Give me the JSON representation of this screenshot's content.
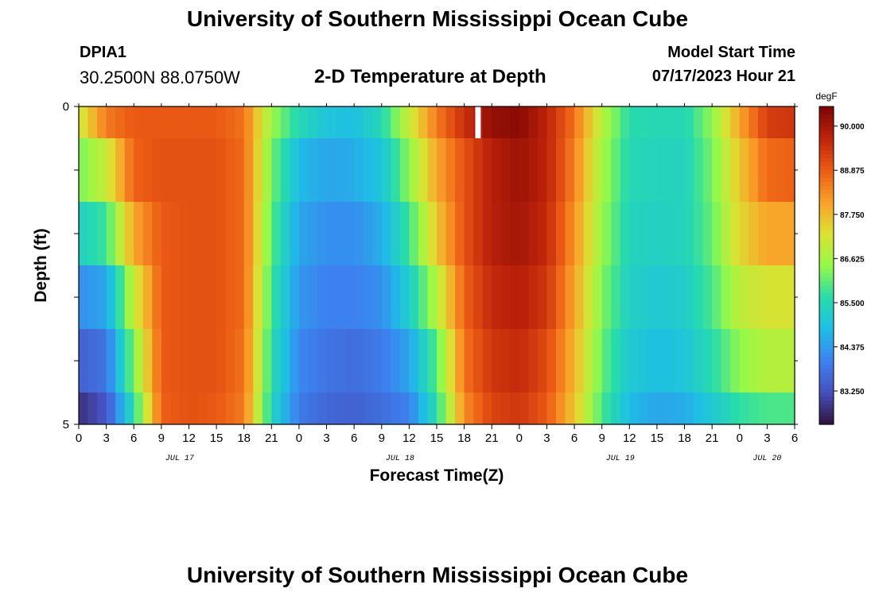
{
  "header": {
    "title": "University of Southern Mississippi Ocean Cube",
    "station": "DPIA1",
    "coords": "30.2500N  88.0750W",
    "subtitle": "2-D Temperature at Depth",
    "start_label": "Model Start Time",
    "start_time": "07/17/2023 Hour 21"
  },
  "footer": {
    "title": "University of Southern Mississippi Ocean Cube"
  },
  "chart_data": {
    "type": "heatmap",
    "xlabel": "Forecast Time(Z)",
    "ylabel": "Depth (ft)",
    "x_range_hours_from_jul17_00z": [
      0,
      78
    ],
    "x_tick_labels": [
      "0",
      "3",
      "6",
      "9",
      "12",
      "15",
      "18",
      "21",
      "0",
      "3",
      "6",
      "9",
      "12",
      "15",
      "18",
      "21",
      "0",
      "3",
      "6",
      "9",
      "12",
      "15",
      "18",
      "21",
      "0",
      "3",
      "6"
    ],
    "date_labels": [
      "JUL 17",
      "JUL 18",
      "JUL 19",
      "JUL 20"
    ],
    "y_tick_labels": [
      "0",
      "5"
    ],
    "ylim": [
      0,
      5
    ],
    "colorbar": {
      "unit": "degF",
      "tick_labels": [
        "90.000",
        "88.875",
        "87.750",
        "86.625",
        "85.500",
        "84.375",
        "83.250"
      ],
      "range": [
        82.4,
        90.5
      ]
    },
    "rows_depth_bins": [
      "0-0.5",
      "0.5-1.5",
      "1.5-2.5",
      "2.5-3.5",
      "3.5-4.5",
      "4.5-5"
    ],
    "time_hours": [
      0,
      3,
      6,
      9,
      12,
      15,
      18,
      21,
      24,
      27,
      30,
      33,
      36,
      39,
      42,
      45,
      48,
      51,
      54,
      57,
      60,
      63,
      66,
      69,
      72,
      75,
      78
    ],
    "values_degF": [
      [
        87.0,
        88.5,
        88.9,
        88.9,
        88.9,
        88.9,
        88.6,
        86.5,
        85.5,
        85.0,
        84.9,
        85.5,
        87.0,
        88.5,
        89.5,
        90.2,
        90.3,
        89.7,
        88.6,
        86.8,
        85.6,
        85.5,
        85.5,
        86.4,
        88.0,
        89.3,
        89.4
      ],
      [
        86.2,
        87.0,
        88.8,
        89.0,
        89.0,
        89.0,
        88.7,
        86.2,
        84.8,
        84.5,
        84.6,
        85.0,
        86.4,
        88.0,
        89.0,
        89.8,
        90.1,
        89.7,
        88.4,
        86.6,
        85.5,
        85.4,
        85.4,
        86.2,
        87.6,
        88.7,
        88.8
      ],
      [
        85.3,
        85.8,
        88.0,
        88.9,
        89.0,
        89.0,
        88.7,
        86.0,
        84.5,
        84.2,
        84.2,
        84.6,
        85.8,
        87.6,
        89.0,
        89.8,
        90.0,
        89.6,
        88.2,
        86.5,
        85.4,
        85.3,
        85.4,
        86.1,
        87.4,
        88.0,
        88.0
      ],
      [
        84.2,
        84.5,
        87.0,
        88.9,
        89.0,
        89.0,
        88.7,
        85.8,
        84.3,
        84.0,
        84.0,
        84.2,
        85.2,
        86.8,
        88.8,
        89.6,
        89.8,
        89.4,
        88.0,
        86.3,
        85.3,
        85.1,
        85.2,
        85.9,
        86.9,
        87.2,
        87.2
      ],
      [
        83.5,
        83.8,
        86.3,
        88.9,
        89.0,
        89.0,
        88.6,
        85.6,
        84.1,
        83.8,
        83.7,
        83.9,
        84.5,
        86.0,
        88.6,
        89.4,
        89.6,
        89.1,
        87.8,
        86.1,
        85.1,
        84.9,
        85.0,
        85.6,
        86.4,
        86.8,
        86.8
      ],
      [
        82.8,
        83.3,
        85.6,
        88.8,
        89.0,
        88.9,
        88.5,
        85.4,
        83.9,
        83.6,
        83.5,
        83.7,
        84.0,
        85.6,
        88.3,
        89.2,
        89.4,
        88.9,
        87.6,
        85.9,
        84.8,
        84.5,
        84.6,
        85.1,
        85.7,
        85.9,
        85.9
      ]
    ],
    "missing_data_column_hour": 43.5,
    "grid": false,
    "legend": "colorbar-right"
  }
}
